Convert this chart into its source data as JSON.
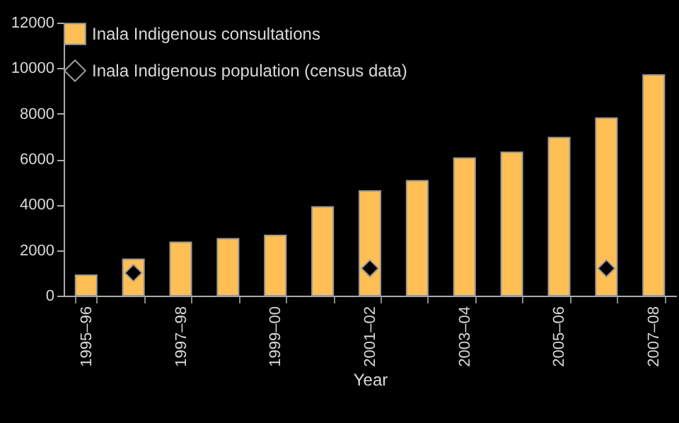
{
  "chart_data": {
    "type": "bar",
    "xlabel": "Year",
    "categories": [
      "1995–96",
      null,
      "1997–98",
      null,
      "1999–00",
      null,
      "2001–02",
      null,
      "2003–04",
      null,
      "2005–06",
      null,
      "2007–08"
    ],
    "series": [
      {
        "name": "Inala Indigenous consultations",
        "color": "#ffbf55",
        "values": [
          900,
          1600,
          2350,
          2500,
          2650,
          3900,
          4600,
          5050,
          6050,
          6300,
          6950,
          7800,
          9700
        ]
      },
      {
        "name": "Inala Indigenous population (census data)",
        "type": "scatter",
        "marker": "diamond",
        "color": "#000000",
        "values": [
          null,
          1000,
          null,
          null,
          null,
          null,
          1200,
          null,
          null,
          null,
          null,
          1200,
          null
        ]
      }
    ],
    "ylim": [
      0,
      12000
    ],
    "yticks": [
      0,
      2000,
      4000,
      6000,
      8000,
      10000,
      12000
    ],
    "grid": false,
    "legend": "top left"
  }
}
